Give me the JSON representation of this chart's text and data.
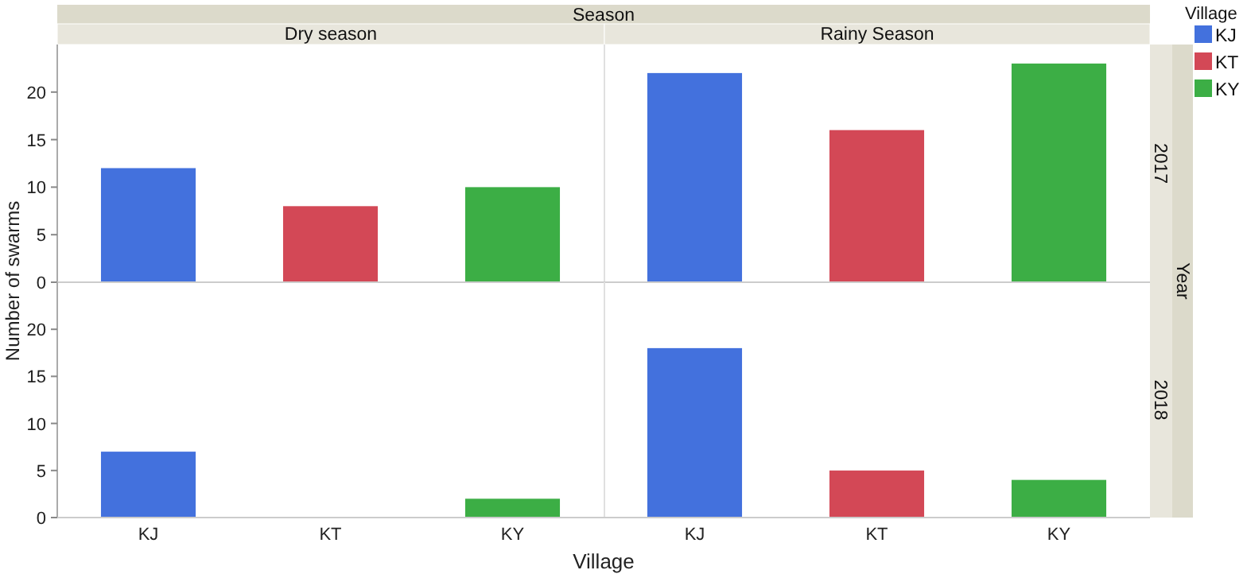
{
  "chart_data": [
    {
      "type": "bar",
      "ylabel": "Number of swarms",
      "annotations": [
        "Season",
        "Dry season",
        "Rainy Season",
        "2017",
        "Year"
      ],
      "categories": [
        null,
        null,
        null,
        null,
        null,
        null
      ],
      "series": [
        {
          "colors": [
            "#4371dd",
            "#d34856",
            "#3cae45",
            "#4371dd",
            "#d34856",
            "#3cae45"
          ],
          "values": [
            12,
            8,
            10,
            22,
            16,
            23
          ]
        }
      ],
      "ylim": [
        0,
        25
      ],
      "yticks": [
        0,
        5,
        10,
        15,
        20
      ],
      "tick_labels": "y"
    },
    {
      "type": "bar",
      "xlabel": "Village",
      "annotations": [
        "2018"
      ],
      "legend": "right",
      "legend_title": "Village",
      "categories": [
        "KJ",
        "KT",
        "KY",
        "KJ",
        "KT",
        "KY"
      ],
      "series": [
        {
          "name": "KJ",
          "color": "#4371dd",
          "values": [
            7,
            null,
            null,
            18,
            null,
            null
          ]
        },
        {
          "name": "KT",
          "color": "#d34856",
          "values": [
            null,
            0,
            null,
            null,
            5,
            null
          ]
        },
        {
          "name": "KY",
          "color": "#3cae45",
          "values": [
            null,
            null,
            2,
            null,
            null,
            4
          ]
        }
      ],
      "ylim": [
        0,
        25
      ],
      "yticks": [
        0,
        5,
        10,
        15,
        20
      ]
    }
  ]
}
